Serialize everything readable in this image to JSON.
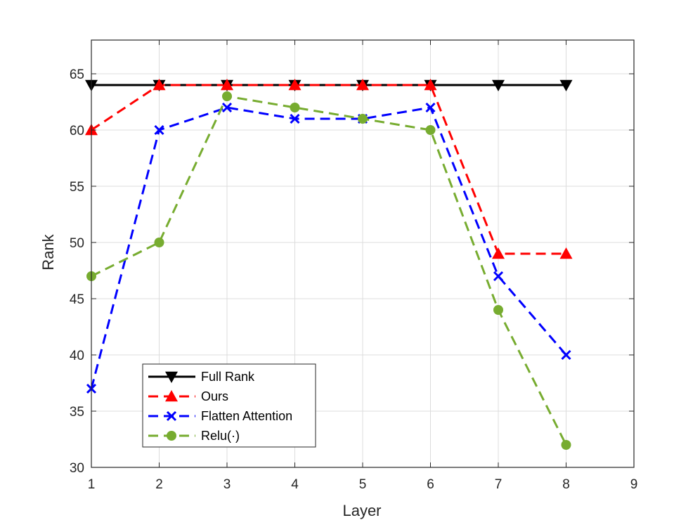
{
  "chart_data": {
    "type": "line",
    "title": "",
    "xlabel": "Layer",
    "ylabel": "Rank",
    "xlim": [
      1,
      9
    ],
    "ylim": [
      30,
      68
    ],
    "xticks": [
      "1",
      "2",
      "3",
      "4",
      "5",
      "6",
      "7",
      "8",
      "9"
    ],
    "yticks": [
      "30",
      "35",
      "40",
      "45",
      "50",
      "55",
      "60",
      "65"
    ],
    "grid": true,
    "legend_position": "bottom-left",
    "x": [
      1,
      2,
      3,
      4,
      5,
      6,
      7,
      8
    ],
    "series": [
      {
        "name": "Full Rank",
        "values": [
          64,
          64,
          64,
          64,
          64,
          64,
          64,
          64
        ],
        "color": "#000000",
        "dash": "solid",
        "marker": "triangle-down"
      },
      {
        "name": "Ours",
        "values": [
          60,
          64,
          64,
          64,
          64,
          64,
          49,
          49
        ],
        "color": "#ff0000",
        "dash": "dashed",
        "marker": "triangle-up"
      },
      {
        "name": "Flatten Attention",
        "values": [
          37,
          60,
          62,
          61,
          61,
          62,
          47,
          40
        ],
        "color": "#0000ff",
        "dash": "dashed",
        "marker": "x"
      },
      {
        "name": "Relu(·)",
        "values": [
          47,
          50,
          63,
          62,
          61,
          60,
          44,
          32
        ],
        "color": "#77ac30",
        "dash": "dashed",
        "marker": "circle"
      }
    ]
  }
}
